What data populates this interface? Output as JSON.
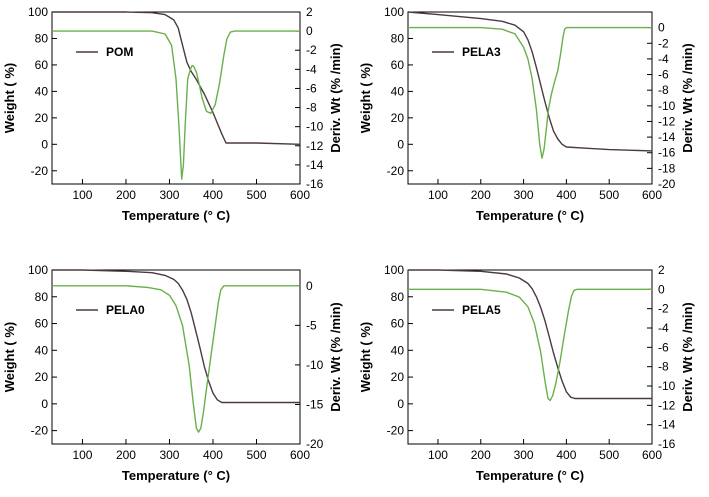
{
  "chart_data": [
    {
      "type": "line",
      "legend_position": "top-left",
      "legend_label": "POM",
      "xlabel": "Temperature (° C)",
      "ylabel": "Weight ( %)",
      "y2label": "Deriv. Wt (% /min)",
      "xlim": [
        30,
        600
      ],
      "ylim": [
        -30,
        100
      ],
      "y2lim": [
        -16,
        2
      ],
      "xticks": [
        "100",
        "200",
        "300",
        "400",
        "500",
        "600"
      ],
      "yticks": [
        "100",
        "80",
        "60",
        "40",
        "20",
        "0",
        "-20"
      ],
      "y2ticks": [
        "2",
        "0",
        "-2",
        "-4",
        "-6",
        "-8",
        "-10",
        "-12",
        "-14",
        "-16"
      ],
      "series": [
        {
          "axis": "left",
          "color": "#4a3a42",
          "x": [
            30,
            100,
            200,
            260,
            290,
            310,
            320,
            330,
            340,
            350,
            360,
            380,
            400,
            420,
            430,
            450,
            500,
            600
          ],
          "y": [
            100,
            100,
            100,
            99.5,
            98,
            94,
            88,
            75,
            62,
            55,
            50,
            38,
            24,
            8,
            1,
            1,
            1,
            0
          ]
        },
        {
          "axis": "right",
          "color": "#6ab04c",
          "x": [
            30,
            100,
            200,
            260,
            290,
            305,
            315,
            322,
            328,
            332,
            336,
            342,
            348,
            352,
            356,
            362,
            368,
            375,
            385,
            395,
            405,
            415,
            425,
            432,
            440,
            450,
            500,
            600
          ],
          "y": [
            0,
            0,
            0,
            0,
            -0.3,
            -1.5,
            -5,
            -10,
            -15.5,
            -14,
            -10,
            -5,
            -4,
            -3.6,
            -3.7,
            -4.3,
            -5.5,
            -7,
            -8.4,
            -8.6,
            -7.7,
            -5.5,
            -2.5,
            -0.8,
            -0.1,
            0,
            0,
            0
          ]
        }
      ]
    },
    {
      "type": "line",
      "legend_position": "top-left",
      "legend_label": "PELA3",
      "xlabel": "Temperature (° C)",
      "ylabel": "Weight ( %)",
      "y2label": "Deriv. Wt (% /min)",
      "xlim": [
        30,
        600
      ],
      "ylim": [
        -30,
        100
      ],
      "y2lim": [
        -20,
        2
      ],
      "xticks": [
        "100",
        "200",
        "300",
        "400",
        "500",
        "600"
      ],
      "yticks": [
        "100",
        "80",
        "60",
        "40",
        "20",
        "0",
        "-20"
      ],
      "y2ticks": [
        "0",
        "-2",
        "-4",
        "-6",
        "-8",
        "-10",
        "-12",
        "-14",
        "-16",
        "-18",
        "-20"
      ],
      "series": [
        {
          "axis": "left",
          "color": "#4a3a42",
          "x": [
            30,
            100,
            200,
            250,
            280,
            300,
            310,
            320,
            330,
            340,
            350,
            360,
            370,
            380,
            390,
            400,
            450,
            500,
            600
          ],
          "y": [
            100,
            98,
            95,
            93,
            90,
            85,
            79,
            70,
            58,
            45,
            32,
            20,
            10,
            4,
            0,
            -2,
            -3,
            -4,
            -5
          ]
        },
        {
          "axis": "right",
          "color": "#6ab04c",
          "x": [
            30,
            100,
            200,
            250,
            280,
            300,
            310,
            320,
            330,
            338,
            343,
            348,
            353,
            358,
            365,
            372,
            380,
            386,
            392,
            396,
            400,
            450,
            500,
            600
          ],
          "y": [
            0,
            0,
            0,
            -0.2,
            -0.8,
            -2.5,
            -4,
            -6.5,
            -10.5,
            -15,
            -16.7,
            -15.5,
            -13,
            -10.5,
            -8.5,
            -7,
            -5.5,
            -3.5,
            -1.2,
            -0.2,
            0,
            0,
            0,
            0
          ]
        }
      ]
    },
    {
      "type": "line",
      "legend_position": "top-left",
      "legend_label": "PELA0",
      "xlabel": "Temperature (° C)",
      "ylabel": "Weight ( %)",
      "y2label": "Deriv. Wt (% /min)",
      "xlim": [
        30,
        600
      ],
      "ylim": [
        -30,
        100
      ],
      "y2lim": [
        -20,
        2
      ],
      "xticks": [
        "100",
        "200",
        "300",
        "400",
        "500",
        "600"
      ],
      "yticks": [
        "100",
        "80",
        "60",
        "40",
        "20",
        "0",
        "-20"
      ],
      "y2ticks": [
        "0",
        "-5",
        "-10",
        "-15",
        "-20"
      ],
      "series": [
        {
          "axis": "left",
          "color": "#4a3a42",
          "x": [
            30,
            100,
            200,
            260,
            290,
            310,
            320,
            330,
            340,
            350,
            360,
            370,
            380,
            390,
            400,
            410,
            420,
            450,
            500,
            600
          ],
          "y": [
            100,
            100,
            99,
            98,
            96,
            93,
            90,
            85,
            78,
            68,
            55,
            42,
            28,
            17,
            8,
            3,
            1,
            1,
            1,
            1
          ]
        },
        {
          "axis": "right",
          "color": "#6ab04c",
          "x": [
            30,
            100,
            200,
            250,
            280,
            300,
            315,
            330,
            345,
            355,
            362,
            367,
            372,
            378,
            385,
            395,
            405,
            412,
            418,
            425,
            450,
            500,
            600
          ],
          "y": [
            0,
            0,
            0,
            -0.2,
            -0.5,
            -1.2,
            -2.5,
            -5,
            -10,
            -15,
            -18,
            -18.5,
            -18,
            -16,
            -13,
            -9,
            -5,
            -2.2,
            -0.5,
            0,
            0,
            0,
            0
          ]
        }
      ]
    },
    {
      "type": "line",
      "legend_position": "top-left",
      "legend_label": "PELA5",
      "xlabel": "Temperature (° C)",
      "ylabel": "Weight ( %)",
      "y2label": "Deriv. Wt (% /min)",
      "xlim": [
        30,
        600
      ],
      "ylim": [
        -30,
        100
      ],
      "y2lim": [
        -16,
        2
      ],
      "xticks": [
        "100",
        "200",
        "300",
        "400",
        "500",
        "600"
      ],
      "yticks": [
        "100",
        "80",
        "60",
        "40",
        "20",
        "0",
        "-20"
      ],
      "y2ticks": [
        "2",
        "0",
        "-2",
        "-4",
        "-6",
        "-8",
        "-10",
        "-12",
        "-14",
        "-16"
      ],
      "series": [
        {
          "axis": "left",
          "color": "#4a3a42",
          "x": [
            30,
            100,
            200,
            260,
            290,
            310,
            320,
            330,
            340,
            350,
            360,
            370,
            380,
            390,
            400,
            410,
            420,
            450,
            500,
            600
          ],
          "y": [
            100,
            100,
            99,
            97,
            94,
            90,
            86,
            80,
            72,
            62,
            50,
            38,
            27,
            17,
            9,
            5,
            4,
            4,
            4,
            4
          ]
        },
        {
          "axis": "right",
          "color": "#6ab04c",
          "x": [
            30,
            100,
            200,
            260,
            290,
            310,
            325,
            340,
            350,
            357,
            362,
            368,
            375,
            385,
            395,
            405,
            412,
            418,
            425,
            450,
            500,
            600
          ],
          "y": [
            0,
            0,
            0,
            -0.3,
            -0.8,
            -1.8,
            -3.5,
            -6.5,
            -9.5,
            -11.3,
            -11.5,
            -11,
            -9.8,
            -7.5,
            -4.8,
            -2.2,
            -0.7,
            -0.1,
            0,
            0,
            0,
            0
          ]
        }
      ]
    }
  ]
}
